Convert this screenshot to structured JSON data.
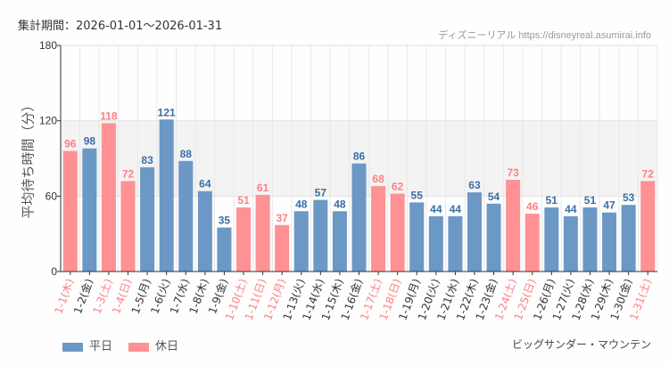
{
  "header": {
    "period": "集計期間：2026-01-01～2026-01-31",
    "credit": "ディズニーリアル https://disneyreal.asumirai.info"
  },
  "attraction": "ビッグサンダー・マウンテン",
  "colors": {
    "weekday": "#6b98c5",
    "holiday": "#ff9194",
    "weekday_label": "#3a6ea5",
    "holiday_label": "#ff7f84"
  },
  "chart_data": {
    "type": "bar",
    "ylabel": "平均待ち時間（分）",
    "ylim": [
      0,
      180
    ],
    "yticks": [
      0,
      60,
      120,
      180
    ],
    "grid": true,
    "shaded_band": [
      60,
      120
    ],
    "legend_position": "bottom-left",
    "legend": [
      {
        "name": "平日",
        "key": "weekday"
      },
      {
        "name": "休日",
        "key": "holiday"
      }
    ],
    "categories": [
      "1-1(木)",
      "1-2(金)",
      "1-3(土)",
      "1-4(日)",
      "1-5(月)",
      "1-6(火)",
      "1-7(水)",
      "1-8(木)",
      "1-9(金)",
      "1-10(土)",
      "1-11(日)",
      "1-12(月)",
      "1-13(火)",
      "1-14(水)",
      "1-15(木)",
      "1-16(金)",
      "1-17(土)",
      "1-18(日)",
      "1-19(月)",
      "1-20(火)",
      "1-21(水)",
      "1-22(木)",
      "1-23(金)",
      "1-24(土)",
      "1-25(日)",
      "1-26(月)",
      "1-27(火)",
      "1-28(水)",
      "1-29(木)",
      "1-30(金)",
      "1-31(土)"
    ],
    "values": [
      96,
      98,
      118,
      72,
      83,
      121,
      88,
      64,
      35,
      51,
      61,
      37,
      48,
      57,
      48,
      86,
      68,
      62,
      55,
      44,
      44,
      63,
      54,
      73,
      46,
      51,
      44,
      51,
      47,
      53,
      72
    ],
    "holiday": [
      true,
      false,
      true,
      true,
      false,
      false,
      false,
      false,
      false,
      true,
      true,
      true,
      false,
      false,
      false,
      false,
      true,
      true,
      false,
      false,
      false,
      false,
      false,
      true,
      true,
      false,
      false,
      false,
      false,
      false,
      true
    ]
  }
}
